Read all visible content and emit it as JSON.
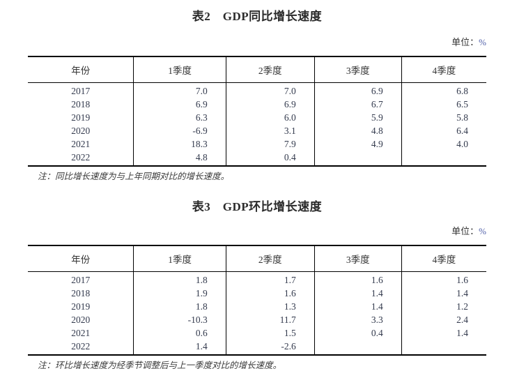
{
  "colors": {
    "text": "#333333",
    "border": "#000000",
    "percent_accent": "#4f5fa8",
    "background": "#ffffff"
  },
  "tables": [
    {
      "title": "表2　GDP同比增长速度",
      "unit_label": "单位：",
      "unit_value": "%",
      "columns": [
        "年份",
        "1季度",
        "2季度",
        "3季度",
        "4季度"
      ],
      "rows": [
        [
          "2017",
          "7.0",
          "7.0",
          "6.9",
          "6.8"
        ],
        [
          "2018",
          "6.9",
          "6.9",
          "6.7",
          "6.5"
        ],
        [
          "2019",
          "6.3",
          "6.0",
          "5.9",
          "5.8"
        ],
        [
          "2020",
          "-6.9",
          "3.1",
          "4.8",
          "6.4"
        ],
        [
          "2021",
          "18.3",
          "7.9",
          "4.9",
          "4.0"
        ],
        [
          "2022",
          "4.8",
          "0.4",
          "",
          ""
        ]
      ],
      "note": "注：同比增长速度为与上年同期对比的增长速度。"
    },
    {
      "title": "表3　GDP环比增长速度",
      "unit_label": "单位：",
      "unit_value": "%",
      "columns": [
        "年份",
        "1季度",
        "2季度",
        "3季度",
        "4季度"
      ],
      "rows": [
        [
          "2017",
          "1.8",
          "1.7",
          "1.6",
          "1.6"
        ],
        [
          "2018",
          "1.9",
          "1.6",
          "1.4",
          "1.4"
        ],
        [
          "2019",
          "1.8",
          "1.3",
          "1.4",
          "1.2"
        ],
        [
          "2020",
          "-10.3",
          "11.7",
          "3.3",
          "2.4"
        ],
        [
          "2021",
          "0.6",
          "1.5",
          "0.4",
          "1.4"
        ],
        [
          "2022",
          "1.4",
          "-2.6",
          "",
          ""
        ]
      ],
      "note": "注：环比增长速度为经季节调整后与上一季度对比的增长速度。"
    }
  ]
}
